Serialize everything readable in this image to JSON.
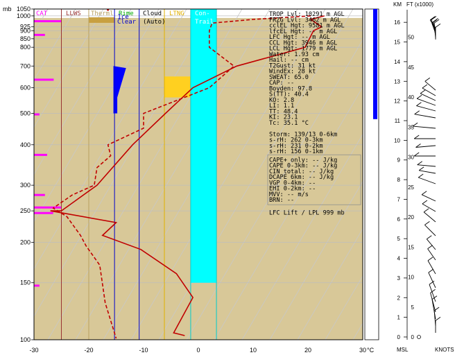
{
  "chart_data": {
    "type": "line",
    "title": "",
    "xunit": "°C",
    "yunit": "mb",
    "xlim": [
      -30,
      30
    ],
    "ylim": [
      1050,
      100
    ],
    "yscale": "log",
    "x_ticks": [
      "-30",
      "-20",
      "-10",
      "0",
      "10",
      "20",
      "30"
    ],
    "y_ticks": [
      "100",
      "150",
      "200",
      "250",
      "300",
      "400",
      "500",
      "600",
      "700",
      "800",
      "850",
      "900",
      "925",
      "1000",
      "1050"
    ],
    "header_labels": [
      {
        "text": "CAT",
        "color": "#ff00ff"
      },
      {
        "text": "LLWS",
        "color": "#993333"
      },
      {
        "text": "Therml",
        "color": "#b8a060"
      },
      {
        "text": "Rime",
        "color": "#00aa00"
      },
      {
        "text": "Clear",
        "color": "#0000cc"
      },
      {
        "text": "Cloud",
        "color": "#000000"
      },
      {
        "text": "(Auto)",
        "color": "#000000"
      },
      {
        "text": "LTNG",
        "color": "#e0b000"
      },
      {
        "text": "Con-",
        "color": "#ffffff"
      },
      {
        "text": "Trail",
        "color": "#ffffff"
      }
    ],
    "ice_label": "Ice",
    "series": [
      {
        "name": "Temperature",
        "style": "solid",
        "color": "#c00000",
        "points": [
          [
            23,
            1000
          ],
          [
            20.5,
            975
          ],
          [
            22.5,
            925
          ],
          [
            21,
            900
          ],
          [
            19.5,
            800
          ],
          [
            7,
            700
          ],
          [
            -1,
            600
          ],
          [
            -6,
            500
          ],
          [
            -12,
            400
          ],
          [
            -18.5,
            300
          ],
          [
            -25,
            250
          ],
          [
            -27,
            250
          ],
          [
            -15,
            230
          ],
          [
            -17.5,
            210
          ],
          [
            -10.5,
            190
          ],
          [
            -4,
            160
          ],
          [
            -1,
            135
          ],
          [
            -4.5,
            105
          ],
          [
            -2.5,
            103
          ]
        ]
      },
      {
        "name": "Dewpoint",
        "style": "dashed",
        "color": "#c00000",
        "points": [
          [
            20.5,
            1000
          ],
          [
            10,
            975
          ],
          [
            2.5,
            950
          ],
          [
            2,
            900
          ],
          [
            2,
            800
          ],
          [
            6.5,
            700
          ],
          [
            2,
            600
          ],
          [
            -10,
            500
          ],
          [
            -10,
            450
          ],
          [
            -16.5,
            400
          ],
          [
            -16,
            370
          ],
          [
            -18.5,
            340
          ],
          [
            -19,
            300
          ],
          [
            -23,
            280
          ],
          [
            -26.5,
            255
          ],
          [
            -24,
            240
          ],
          [
            -21.5,
            210
          ],
          [
            -20.5,
            195
          ],
          [
            -18,
            170
          ],
          [
            -17,
            130
          ],
          [
            -15,
            101
          ]
        ]
      }
    ],
    "index_table": [
      "TROP Lvl: 10291 m AGL",
      "FRZG Lvl:  3462 m AGL",
      "cclEL Hgt:  9581 m AGL",
      "lfcEL Hgt:    -- m AGL",
      "LFC Hgt:    -- m AGL",
      "CCL Hgt:  3946 m AGL",
      "LCL Hgt:  1779 m AGL",
      "Water:  1.93 cm",
      "Hail:    -- cm",
      "T2Gust:    31 kt",
      "WindEx:    28 kt",
      "SWEAT:  65.0",
      "CAP:    --",
      "Boyden:  97.8",
      "S(TT):  40.4",
      "KO:   2.8",
      "LI:   1.1",
      "TT:  48.4",
      "KI:  23.1",
      "Tc:  35.1 °C",
      "",
      "Storm: 139/13 0-6km",
      "s-rH:   262  0-3km",
      "s-rH:   231  0-2km",
      "s-rH:   156  0-1km"
    ],
    "cape_table": [
      "CAPE+ only:    -- J/kg",
      "CAPE 0-3km:    -- J/kg",
      "CIN total:    -- J/kg",
      "DCAPE 6km:    -- J/kg",
      "VGP 0-4km:    --",
      "EHI 0-2km:    --",
      "MVV:    -- m/s",
      "BRN:    --"
    ],
    "lfc_note": "LFC Lift / LPL 999 mb",
    "right_axis": {
      "km_label": "KM",
      "ft_label": "FT (x1000)",
      "km_ticks": [
        "0",
        "1",
        "2",
        "3",
        "4",
        "5",
        "6",
        "7",
        "8",
        "9",
        "10",
        "11",
        "12",
        "13",
        "14",
        "15",
        "16"
      ],
      "ft_ticks": [
        "0",
        "5",
        "10",
        "15",
        "20",
        "25",
        "30",
        "35",
        "40",
        "45",
        "50"
      ],
      "bottom_left": "MSL",
      "bottom_right": "KNOTS"
    },
    "colors": {
      "cat": "#ff00ff",
      "llws": "#ff0000",
      "thermal": "#c8a040",
      "rime_clear": "#0000ff",
      "cloud": "#808080",
      "ltng": "#ffd020",
      "contrail": "#00ffff",
      "surface": "#d8c898",
      "trace": "#c00000"
    }
  }
}
